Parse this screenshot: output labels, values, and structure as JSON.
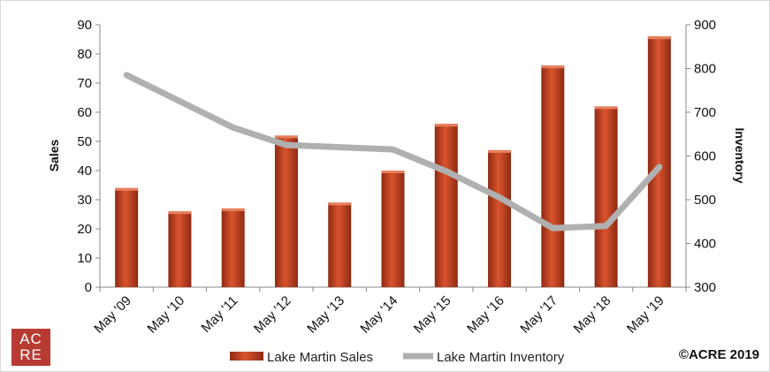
{
  "chart_data": {
    "type": "bar+line",
    "categories": [
      "May '09",
      "May '10",
      "May '11",
      "May '12",
      "May '13",
      "May '14",
      "May '15",
      "May '16",
      "May '17",
      "May '18",
      "May '19"
    ],
    "series": [
      {
        "name": "Lake Martin Sales",
        "type": "bar",
        "axis": "left",
        "values": [
          34,
          26,
          27,
          52,
          29,
          40,
          56,
          47,
          76,
          62,
          86
        ],
        "color": "#b9391f"
      },
      {
        "name": "Lake Martin Inventory",
        "type": "line",
        "axis": "right",
        "values": [
          785,
          725,
          665,
          625,
          620,
          615,
          565,
          505,
          435,
          440,
          575
        ],
        "color": "#b0b0b0"
      }
    ],
    "ylabel": "Sales",
    "y2label": "Inventory",
    "ylim": [
      0,
      90
    ],
    "y2lim": [
      300,
      900
    ],
    "yticks": [
      0,
      10,
      20,
      30,
      40,
      50,
      60,
      70,
      80,
      90
    ],
    "y2ticks": [
      300,
      400,
      500,
      600,
      700,
      800,
      900
    ],
    "grid": false,
    "legend": "bottom"
  },
  "logo": {
    "line1": "AC",
    "line2": "RE"
  },
  "copyright": "©ACRE 2019"
}
